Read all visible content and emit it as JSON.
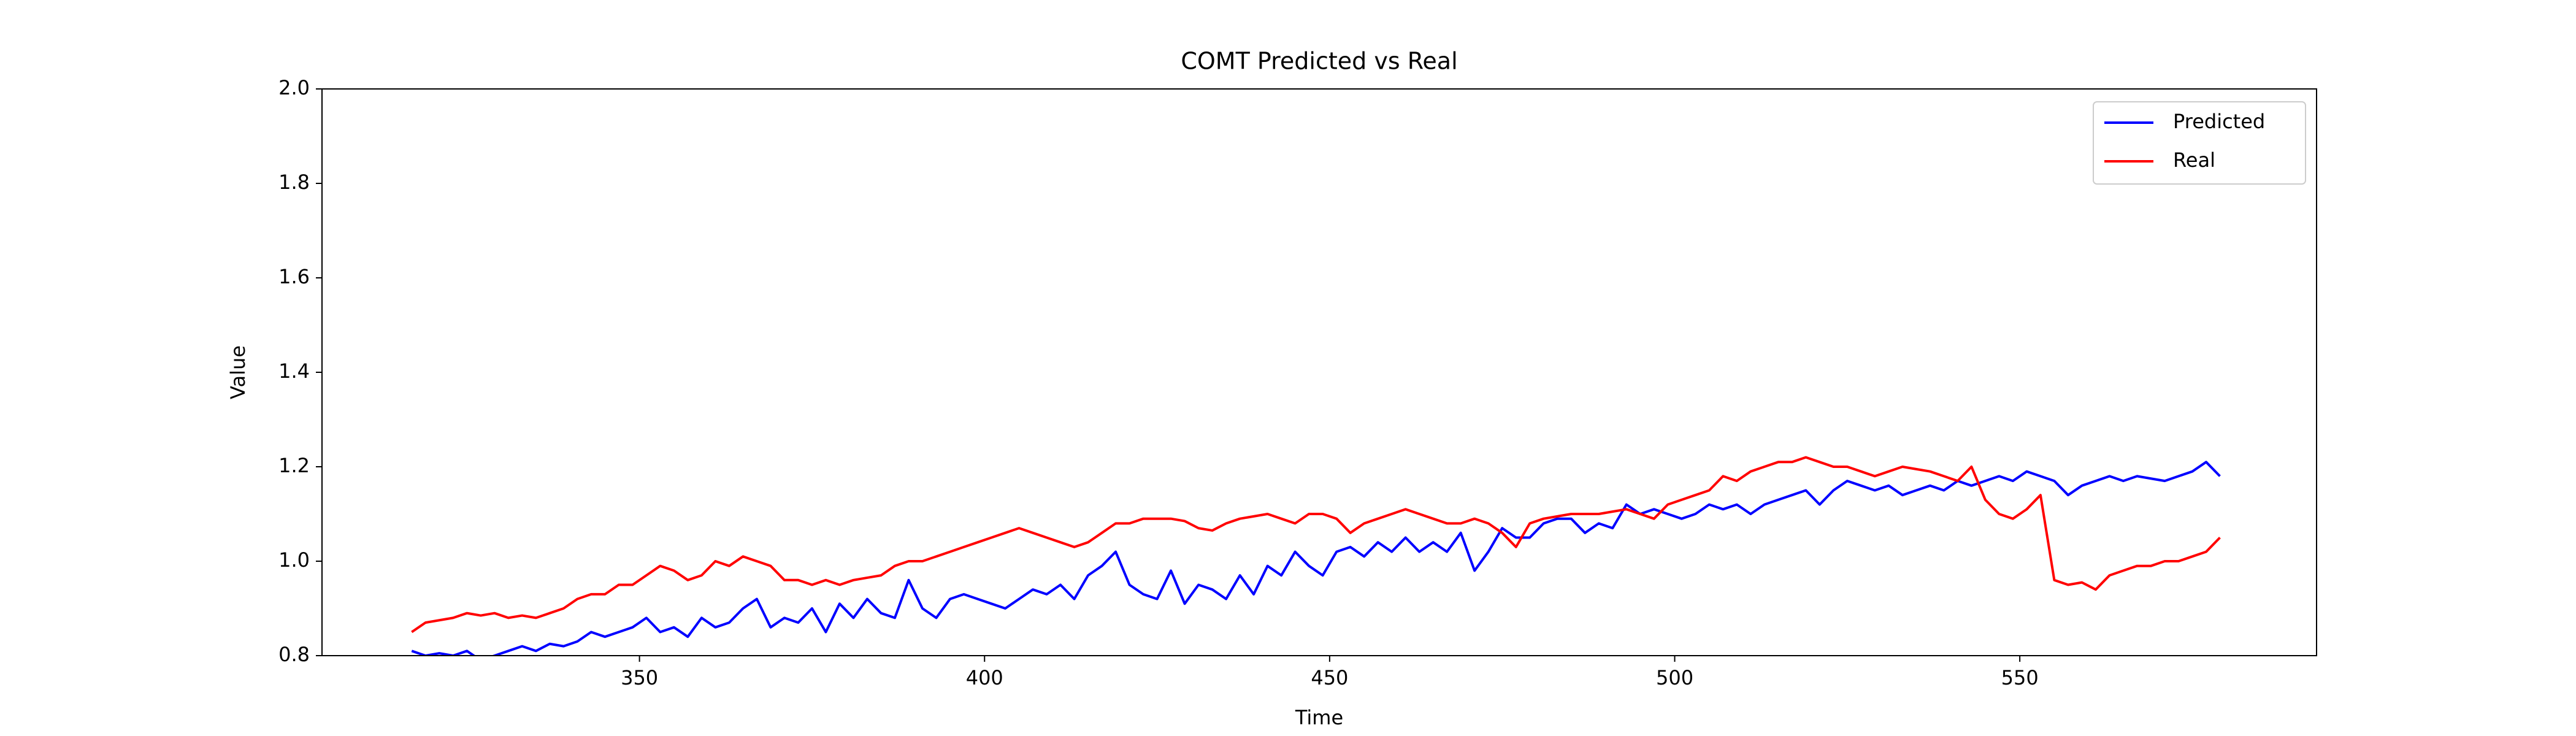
{
  "chart_data": {
    "type": "line",
    "title": "COMT Predicted vs Real",
    "xlabel": "Time",
    "ylabel": "Value",
    "x": [
      317,
      319,
      321,
      323,
      325,
      327,
      329,
      331,
      333,
      335,
      337,
      339,
      341,
      343,
      345,
      347,
      349,
      351,
      353,
      355,
      357,
      359,
      361,
      363,
      365,
      367,
      369,
      371,
      373,
      375,
      377,
      379,
      381,
      383,
      385,
      387,
      389,
      391,
      393,
      395,
      397,
      399,
      401,
      403,
      405,
      407,
      409,
      411,
      413,
      415,
      417,
      419,
      421,
      423,
      425,
      427,
      429,
      431,
      433,
      435,
      437,
      439,
      441,
      443,
      445,
      447,
      449,
      451,
      453,
      455,
      457,
      459,
      461,
      463,
      465,
      467,
      469,
      471,
      473,
      475,
      477,
      479,
      481,
      483,
      485,
      487,
      489,
      491,
      493,
      495,
      497,
      499,
      501,
      503,
      505,
      507,
      509,
      511,
      513,
      515,
      517,
      519,
      521,
      523,
      525,
      527,
      529,
      531,
      533,
      535,
      537,
      539,
      541,
      543,
      545,
      547,
      549,
      551,
      553,
      555,
      557,
      559,
      561,
      563,
      565,
      567,
      569,
      571,
      573,
      575,
      577,
      579
    ],
    "series": [
      {
        "name": "Predicted",
        "color": "#0000ff",
        "values": [
          0.81,
          0.8,
          0.805,
          0.8,
          0.81,
          0.79,
          0.8,
          0.81,
          0.82,
          0.81,
          0.825,
          0.82,
          0.83,
          0.85,
          0.84,
          0.85,
          0.86,
          0.88,
          0.85,
          0.86,
          0.84,
          0.88,
          0.86,
          0.87,
          0.9,
          0.92,
          0.86,
          0.88,
          0.87,
          0.9,
          0.85,
          0.91,
          0.88,
          0.92,
          0.89,
          0.88,
          0.96,
          0.9,
          0.88,
          0.92,
          0.93,
          0.92,
          0.91,
          0.9,
          0.92,
          0.94,
          0.93,
          0.95,
          0.92,
          0.97,
          0.99,
          1.02,
          0.95,
          0.93,
          0.92,
          0.98,
          0.91,
          0.95,
          0.94,
          0.92,
          0.97,
          0.93,
          0.99,
          0.97,
          1.02,
          0.99,
          0.97,
          1.02,
          1.03,
          1.01,
          1.04,
          1.02,
          1.05,
          1.02,
          1.04,
          1.02,
          1.06,
          0.98,
          1.02,
          1.07,
          1.05,
          1.05,
          1.08,
          1.09,
          1.09,
          1.06,
          1.08,
          1.07,
          1.12,
          1.1,
          1.11,
          1.1,
          1.09,
          1.1,
          1.12,
          1.11,
          1.12,
          1.1,
          1.12,
          1.13,
          1.14,
          1.15,
          1.12,
          1.15,
          1.17,
          1.16,
          1.15,
          1.16,
          1.14,
          1.15,
          1.16,
          1.15,
          1.17,
          1.16,
          1.17,
          1.18,
          1.17,
          1.19,
          1.18,
          1.17,
          1.14,
          1.16,
          1.17,
          1.18,
          1.17,
          1.18,
          1.175,
          1.17,
          1.18,
          1.19,
          1.21,
          1.18
        ]
      },
      {
        "name": "Real",
        "color": "#ff0000",
        "values": [
          0.85,
          0.87,
          0.875,
          0.88,
          0.89,
          0.885,
          0.89,
          0.88,
          0.885,
          0.88,
          0.89,
          0.9,
          0.92,
          0.93,
          0.93,
          0.95,
          0.95,
          0.97,
          0.99,
          0.98,
          0.96,
          0.97,
          1.0,
          0.99,
          1.01,
          1.0,
          0.99,
          0.96,
          0.96,
          0.95,
          0.96,
          0.95,
          0.96,
          0.965,
          0.97,
          0.99,
          1.0,
          1.0,
          1.01,
          1.02,
          1.03,
          1.04,
          1.05,
          1.06,
          1.07,
          1.06,
          1.05,
          1.04,
          1.03,
          1.04,
          1.06,
          1.08,
          1.08,
          1.09,
          1.09,
          1.09,
          1.085,
          1.07,
          1.065,
          1.08,
          1.09,
          1.095,
          1.1,
          1.09,
          1.08,
          1.1,
          1.1,
          1.09,
          1.06,
          1.08,
          1.09,
          1.1,
          1.11,
          1.1,
          1.09,
          1.08,
          1.08,
          1.09,
          1.08,
          1.06,
          1.03,
          1.08,
          1.09,
          1.095,
          1.1,
          1.1,
          1.1,
          1.105,
          1.11,
          1.1,
          1.09,
          1.12,
          1.13,
          1.14,
          1.15,
          1.18,
          1.17,
          1.19,
          1.2,
          1.21,
          1.21,
          1.22,
          1.21,
          1.2,
          1.2,
          1.19,
          1.18,
          1.19,
          1.2,
          1.195,
          1.19,
          1.18,
          1.17,
          1.2,
          1.13,
          1.1,
          1.09,
          1.11,
          1.14,
          0.96,
          0.95,
          0.955,
          0.94,
          0.97,
          0.98,
          0.99,
          0.99,
          1.0,
          1.0,
          1.01,
          1.02,
          1.05
        ]
      }
    ],
    "xlim": [
      304,
      593
    ],
    "xticks": [
      350,
      400,
      450,
      500,
      550
    ],
    "ylim": [
      0.8,
      2.0
    ],
    "yticks": [
      {
        "value": 0.8,
        "label": "0.8"
      },
      {
        "value": 1.0,
        "label": "1.0"
      },
      {
        "value": 1.2,
        "label": "1.2"
      },
      {
        "value": 1.4,
        "label": "1.4"
      },
      {
        "value": 1.6,
        "label": "1.6"
      },
      {
        "value": 1.8,
        "label": "1.8"
      },
      {
        "value": 2.0,
        "label": "2.0"
      }
    ],
    "legend": "upper right"
  }
}
